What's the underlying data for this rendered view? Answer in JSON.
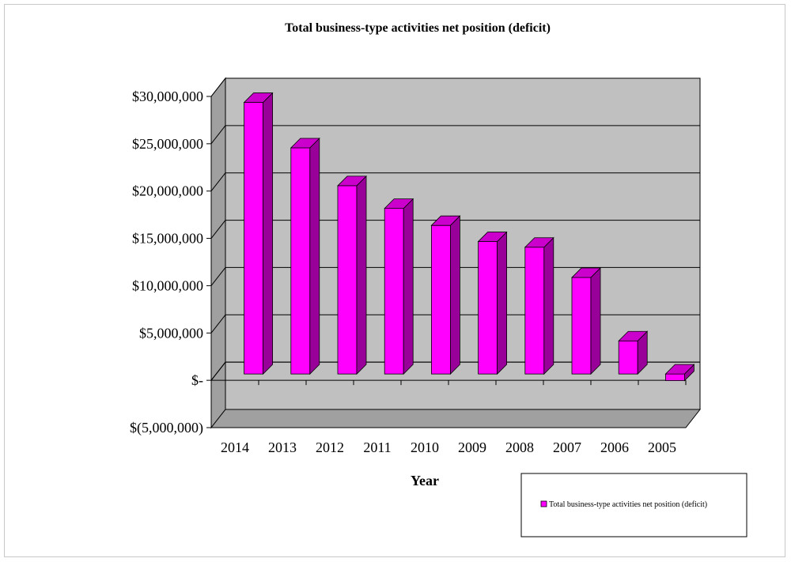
{
  "chart_data": {
    "type": "bar",
    "title": "Total business-type activities net position (deficit)",
    "xlabel": "Year",
    "ylabel": "",
    "categories": [
      "2014",
      "2013",
      "2012",
      "2011",
      "2010",
      "2009",
      "2008",
      "2007",
      "2006",
      "2005"
    ],
    "series": [
      {
        "name": "Total business-type activities net position (deficit)",
        "values": [
          28700000,
          23900000,
          19900000,
          17500000,
          15700000,
          14000000,
          13400000,
          10200000,
          3500000,
          -700000
        ]
      }
    ],
    "ylim": [
      -5000000,
      30000000
    ],
    "yticks": [
      30000000,
      25000000,
      20000000,
      15000000,
      10000000,
      5000000,
      0,
      -5000000
    ],
    "ytick_labels": [
      "$30,000,000",
      "$25,000,000",
      "$20,000,000",
      "$15,000,000",
      "$10,000,000",
      "$5,000,000",
      "$-",
      "$(5,000,000)"
    ],
    "grid": true,
    "legend_position": "bottom-right",
    "colors": {
      "bar_front": "#ff00ff",
      "bar_top": "#cc00cc",
      "bar_side": "#990099",
      "plot_wall": "#c0c0c0",
      "plot_floor": "#a0a0a0",
      "gridline": "#000000"
    }
  }
}
